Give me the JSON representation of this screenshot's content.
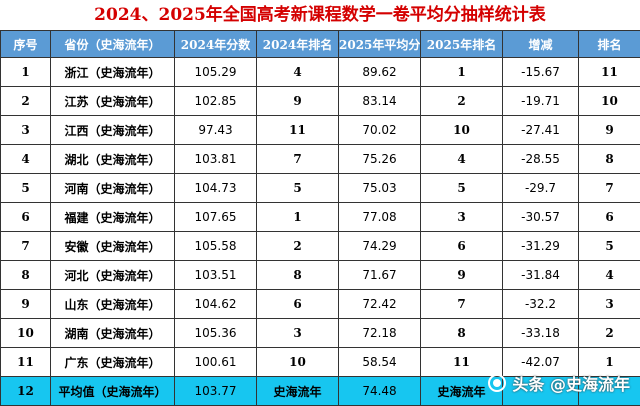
{
  "title": "2024、2025年全国高考新课程数学一卷平均分抽样统计表",
  "headers": [
    "序号",
    "省份（史海流年）",
    "2024年分数",
    "2024年排名",
    "2025年平均分",
    "2025年排名",
    "增减",
    "排名"
  ],
  "rows": [
    [
      "1",
      "浙江（史海流年）",
      "105.29",
      "4",
      "89.62",
      "1",
      "-15.67",
      "11"
    ],
    [
      "2",
      "江苏（史海流年）",
      "102.85",
      "9",
      "83.14",
      "2",
      "-19.71",
      "10"
    ],
    [
      "3",
      "江西（史海流年）",
      "97.43",
      "11",
      "70.02",
      "10",
      "-27.41",
      "9"
    ],
    [
      "4",
      "湖北（史海流年）",
      "103.81",
      "7",
      "75.26",
      "4",
      "-28.55",
      "8"
    ],
    [
      "5",
      "河南（史海流年）",
      "104.73",
      "5",
      "75.03",
      "5",
      "-29.7",
      "7"
    ],
    [
      "6",
      "福建（史海流年）",
      "107.65",
      "1",
      "77.08",
      "3",
      "-30.57",
      "6"
    ],
    [
      "7",
      "安徽（史海流年）",
      "105.58",
      "2",
      "74.29",
      "6",
      "-31.29",
      "5"
    ],
    [
      "8",
      "河北（史海流年）",
      "103.51",
      "8",
      "71.67",
      "9",
      "-31.84",
      "4"
    ],
    [
      "9",
      "山东（史海流年）",
      "104.62",
      "6",
      "72.42",
      "7",
      "-32.2",
      "3"
    ],
    [
      "10",
      "湖南（史海流年）",
      "105.36",
      "3",
      "72.18",
      "8",
      "-33.18",
      "2"
    ],
    [
      "11",
      "广东（史海流年）",
      "100.61",
      "10",
      "58.54",
      "11",
      "-42.07",
      "1"
    ]
  ],
  "average_row": [
    "12",
    "平均值（史海流年）",
    "103.77",
    "史海流年",
    "74.48",
    "史海流年",
    "",
    ""
  ],
  "watermark": "头条 @史海流年",
  "colors": {
    "title": "#d40000",
    "header_bg": "#5b9bd5",
    "header_text": "#ffffff",
    "average_bg": "#17c6f0",
    "border": "#333333"
  }
}
